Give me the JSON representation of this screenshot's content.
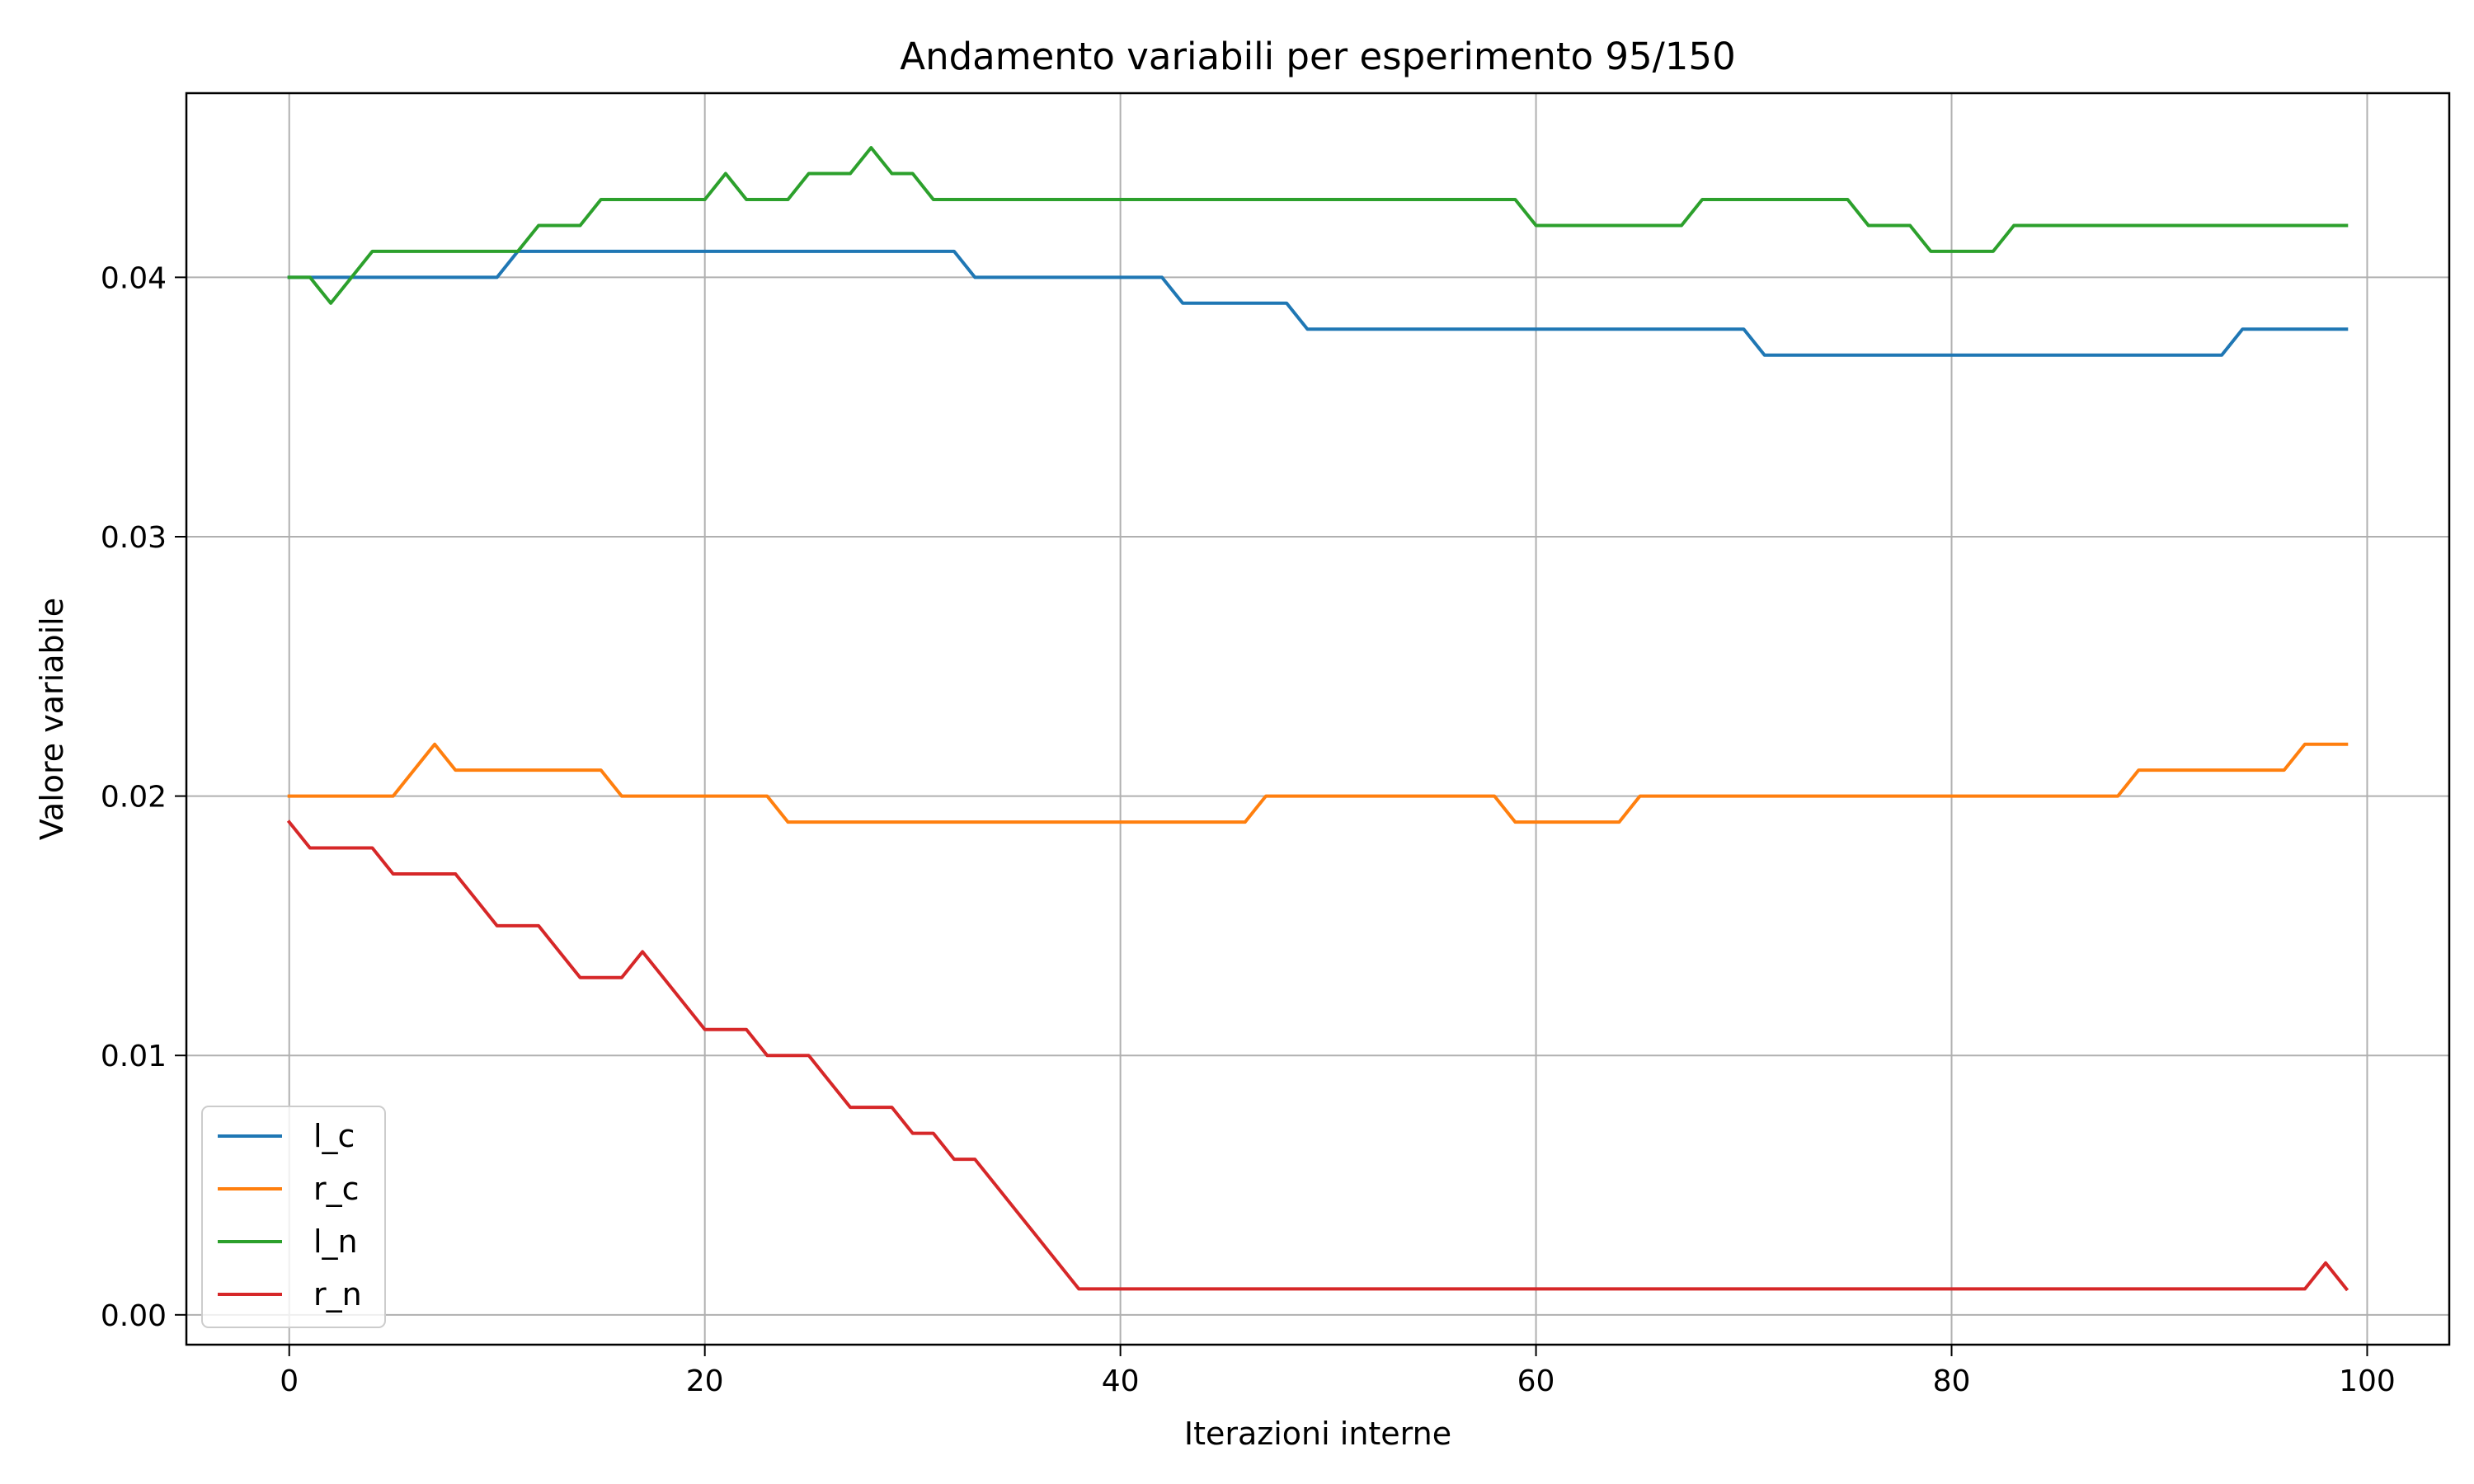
{
  "chart_data": {
    "type": "line",
    "title": "Andamento variabili per esperimento 95/150",
    "xlabel": "Iterazioni interne",
    "ylabel": "Valore variabile",
    "xlim": [
      -4.95,
      103.95
    ],
    "ylim": [
      -0.00115,
      0.0471
    ],
    "x_ticks": [
      0,
      20,
      40,
      60,
      80,
      100
    ],
    "x_tick_labels": [
      "0",
      "20",
      "40",
      "60",
      "80",
      "100"
    ],
    "y_ticks": [
      0.0,
      0.01,
      0.02,
      0.03,
      0.04
    ],
    "y_tick_labels": [
      "0.00",
      "0.01",
      "0.02",
      "0.03",
      "0.04"
    ],
    "grid": true,
    "legend_position": "lower-left",
    "x": [
      0,
      1,
      2,
      3,
      4,
      5,
      6,
      7,
      8,
      9,
      10,
      11,
      12,
      13,
      14,
      15,
      16,
      17,
      18,
      19,
      20,
      21,
      22,
      23,
      24,
      25,
      26,
      27,
      28,
      29,
      30,
      31,
      32,
      33,
      34,
      35,
      36,
      37,
      38,
      39,
      40,
      41,
      42,
      43,
      44,
      45,
      46,
      47,
      48,
      49,
      50,
      51,
      52,
      53,
      54,
      55,
      56,
      57,
      58,
      59,
      60,
      61,
      62,
      63,
      64,
      65,
      66,
      67,
      68,
      69,
      70,
      71,
      72,
      73,
      74,
      75,
      76,
      77,
      78,
      79,
      80,
      81,
      82,
      83,
      84,
      85,
      86,
      87,
      88,
      89,
      90,
      91,
      92,
      93,
      94,
      95,
      96,
      97,
      98,
      99
    ],
    "series": [
      {
        "name": "l_c",
        "color": "#1f77b4",
        "values": [
          0.04,
          0.04,
          0.04,
          0.04,
          0.04,
          0.04,
          0.04,
          0.04,
          0.04,
          0.04,
          0.04,
          0.041,
          0.041,
          0.041,
          0.041,
          0.041,
          0.041,
          0.041,
          0.041,
          0.041,
          0.041,
          0.041,
          0.041,
          0.041,
          0.041,
          0.041,
          0.041,
          0.041,
          0.041,
          0.041,
          0.041,
          0.041,
          0.041,
          0.04,
          0.04,
          0.04,
          0.04,
          0.04,
          0.04,
          0.04,
          0.04,
          0.04,
          0.04,
          0.039,
          0.039,
          0.039,
          0.039,
          0.039,
          0.039,
          0.038,
          0.038,
          0.038,
          0.038,
          0.038,
          0.038,
          0.038,
          0.038,
          0.038,
          0.038,
          0.038,
          0.038,
          0.038,
          0.038,
          0.038,
          0.038,
          0.038,
          0.038,
          0.038,
          0.038,
          0.038,
          0.038,
          0.037,
          0.037,
          0.037,
          0.037,
          0.037,
          0.037,
          0.037,
          0.037,
          0.037,
          0.037,
          0.037,
          0.037,
          0.037,
          0.037,
          0.037,
          0.037,
          0.037,
          0.037,
          0.037,
          0.037,
          0.037,
          0.037,
          0.037,
          0.038,
          0.038,
          0.038,
          0.038,
          0.038,
          0.038
        ]
      },
      {
        "name": "r_c",
        "color": "#ff7f0e",
        "values": [
          0.02,
          0.02,
          0.02,
          0.02,
          0.02,
          0.02,
          0.021,
          0.022,
          0.021,
          0.021,
          0.021,
          0.021,
          0.021,
          0.021,
          0.021,
          0.021,
          0.02,
          0.02,
          0.02,
          0.02,
          0.02,
          0.02,
          0.02,
          0.02,
          0.019,
          0.019,
          0.019,
          0.019,
          0.019,
          0.019,
          0.019,
          0.019,
          0.019,
          0.019,
          0.019,
          0.019,
          0.019,
          0.019,
          0.019,
          0.019,
          0.019,
          0.019,
          0.019,
          0.019,
          0.019,
          0.019,
          0.019,
          0.02,
          0.02,
          0.02,
          0.02,
          0.02,
          0.02,
          0.02,
          0.02,
          0.02,
          0.02,
          0.02,
          0.02,
          0.019,
          0.019,
          0.019,
          0.019,
          0.019,
          0.019,
          0.02,
          0.02,
          0.02,
          0.02,
          0.02,
          0.02,
          0.02,
          0.02,
          0.02,
          0.02,
          0.02,
          0.02,
          0.02,
          0.02,
          0.02,
          0.02,
          0.02,
          0.02,
          0.02,
          0.02,
          0.02,
          0.02,
          0.02,
          0.02,
          0.021,
          0.021,
          0.021,
          0.021,
          0.021,
          0.021,
          0.021,
          0.021,
          0.022,
          0.022,
          0.022
        ]
      },
      {
        "name": "l_n",
        "color": "#2ca02c",
        "values": [
          0.04,
          0.04,
          0.039,
          0.04,
          0.041,
          0.041,
          0.041,
          0.041,
          0.041,
          0.041,
          0.041,
          0.041,
          0.042,
          0.042,
          0.042,
          0.043,
          0.043,
          0.043,
          0.043,
          0.043,
          0.043,
          0.044,
          0.043,
          0.043,
          0.043,
          0.044,
          0.044,
          0.044,
          0.045,
          0.044,
          0.044,
          0.043,
          0.043,
          0.043,
          0.043,
          0.043,
          0.043,
          0.043,
          0.043,
          0.043,
          0.043,
          0.043,
          0.043,
          0.043,
          0.043,
          0.043,
          0.043,
          0.043,
          0.043,
          0.043,
          0.043,
          0.043,
          0.043,
          0.043,
          0.043,
          0.043,
          0.043,
          0.043,
          0.043,
          0.043,
          0.042,
          0.042,
          0.042,
          0.042,
          0.042,
          0.042,
          0.042,
          0.042,
          0.043,
          0.043,
          0.043,
          0.043,
          0.043,
          0.043,
          0.043,
          0.043,
          0.042,
          0.042,
          0.042,
          0.041,
          0.041,
          0.041,
          0.041,
          0.042,
          0.042,
          0.042,
          0.042,
          0.042,
          0.042,
          0.042,
          0.042,
          0.042,
          0.042,
          0.042,
          0.042,
          0.042,
          0.042,
          0.042,
          0.042,
          0.042
        ]
      },
      {
        "name": "r_n",
        "color": "#d62728",
        "values": [
          0.019,
          0.018,
          0.018,
          0.018,
          0.018,
          0.017,
          0.017,
          0.017,
          0.017,
          0.016,
          0.015,
          0.015,
          0.015,
          0.014,
          0.013,
          0.013,
          0.013,
          0.014,
          0.013,
          0.012,
          0.011,
          0.011,
          0.011,
          0.01,
          0.01,
          0.01,
          0.009,
          0.008,
          0.008,
          0.008,
          0.007,
          0.007,
          0.006,
          0.006,
          0.005,
          0.004,
          0.003,
          0.002,
          0.001,
          0.001,
          0.001,
          0.001,
          0.001,
          0.001,
          0.001,
          0.001,
          0.001,
          0.001,
          0.001,
          0.001,
          0.001,
          0.001,
          0.001,
          0.001,
          0.001,
          0.001,
          0.001,
          0.001,
          0.001,
          0.001,
          0.001,
          0.001,
          0.001,
          0.001,
          0.001,
          0.001,
          0.001,
          0.001,
          0.001,
          0.001,
          0.001,
          0.001,
          0.001,
          0.001,
          0.001,
          0.001,
          0.001,
          0.001,
          0.001,
          0.001,
          0.001,
          0.001,
          0.001,
          0.001,
          0.001,
          0.001,
          0.001,
          0.001,
          0.001,
          0.001,
          0.001,
          0.001,
          0.001,
          0.001,
          0.001,
          0.001,
          0.001,
          0.001,
          0.002,
          0.001
        ]
      }
    ]
  }
}
